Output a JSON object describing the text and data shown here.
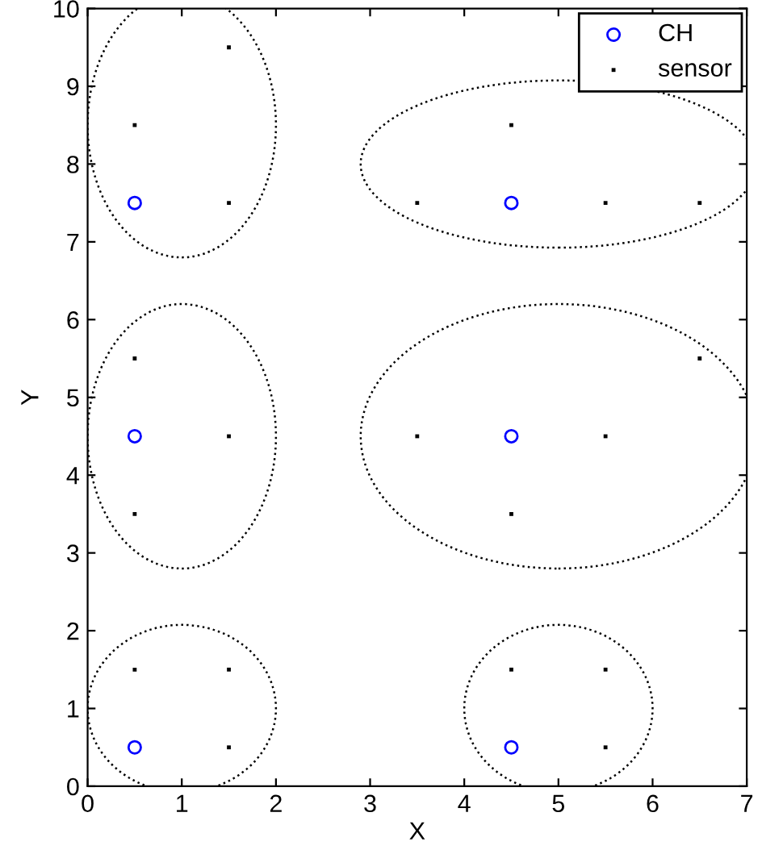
{
  "chart_data": {
    "type": "scatter",
    "xlabel": "X",
    "ylabel": "Y",
    "xlim": [
      0,
      7
    ],
    "ylim": [
      0,
      10
    ],
    "xticks": [
      0,
      1,
      2,
      3,
      4,
      5,
      6,
      7
    ],
    "yticks": [
      0,
      1,
      2,
      3,
      4,
      5,
      6,
      7,
      8,
      9,
      10
    ],
    "legend": "top right",
    "grid": false,
    "series": [
      {
        "name": "CH",
        "color": "#0000ff",
        "marker": "circle",
        "x": [
          0.5,
          4.5,
          0.5,
          4.5,
          0.5,
          4.5
        ],
        "values": [
          7.5,
          7.5,
          4.5,
          4.5,
          0.5,
          0.5
        ]
      },
      {
        "name": "sensor",
        "color": "#000000",
        "marker": "square",
        "x": [
          0.5,
          1.5,
          1.5,
          4.5,
          3.5,
          5.5,
          6.5,
          0.5,
          0.5,
          1.5,
          6.5,
          3.5,
          5.5,
          4.5,
          0.5,
          1.5,
          1.5,
          4.5,
          5.5,
          5.5
        ],
        "values": [
          8.5,
          9.5,
          7.5,
          8.5,
          7.5,
          7.5,
          7.5,
          5.5,
          3.5,
          4.5,
          5.5,
          4.5,
          4.5,
          3.5,
          1.5,
          1.5,
          0.5,
          1.5,
          1.5,
          0.5
        ]
      }
    ]
  }
}
